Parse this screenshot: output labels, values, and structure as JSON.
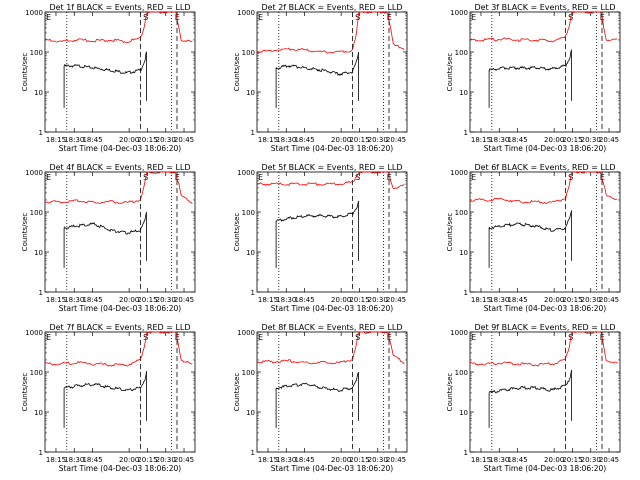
{
  "figure": {
    "colors": {
      "events": "#000000",
      "lld": "#ff0000",
      "axis": "#000000"
    },
    "xlabel": "Start Time (04-Dec-03 18:06:20)",
    "ylabel": "Counts/sec",
    "xticks": [
      "18:15",
      "18:30",
      "18:45",
      "20:00",
      "20:15",
      "20:30",
      "20:45"
    ],
    "yticks": [
      "1",
      "10",
      "100",
      "1000"
    ],
    "markers": [
      "E",
      "S",
      "E"
    ],
    "panels": [
      {
        "title": "Det 1f BLACK = Events, RED = LLD"
      },
      {
        "title": "Det 2f BLACK = Events, RED = LLD"
      },
      {
        "title": "Det 3f BLACK = Events, RED = LLD"
      },
      {
        "title": "Det 4f BLACK = Events, RED = LLD"
      },
      {
        "title": "Det 5f BLACK = Events, RED = LLD"
      },
      {
        "title": "Det 6f BLACK = Events, RED = LLD"
      },
      {
        "title": "Det 7f BLACK = Events, RED = LLD"
      },
      {
        "title": "Det 8f BLACK = Events, RED = LLD"
      },
      {
        "title": "Det 9f BLACK = Events, RED = LLD"
      }
    ]
  },
  "chart_data": [
    {
      "type": "line",
      "title": "Det 1f BLACK = Events, RED = LLD",
      "xlabel": "Start Time (04-Dec-03 18:06:20)",
      "ylabel": "Counts/sec",
      "x_ticks": [
        "18:15",
        "18:30",
        "18:45",
        "20:00",
        "20:15",
        "20:30",
        "20:45"
      ],
      "ylim": [
        1,
        1000
      ],
      "yscale": "log",
      "grid": false,
      "series": [
        {
          "name": "Events",
          "color": "#000000",
          "x": [
            0.35,
            0.6,
            0.9,
            1.2,
            1.5,
            1.75,
            1.83,
            1.86
          ],
          "values": [
            45,
            45,
            40,
            35,
            30,
            35,
            60,
            100
          ]
        },
        {
          "name": "LLD",
          "color": "#ff0000",
          "x": [
            0,
            0.3,
            0.6,
            0.9,
            1.2,
            1.5,
            1.75,
            1.83,
            1.86,
            2.4,
            2.5,
            2.7
          ],
          "values": [
            200,
            180,
            200,
            190,
            200,
            180,
            220,
            500,
            1000,
            1000,
            200,
            180
          ]
        }
      ]
    },
    {
      "type": "line",
      "title": "Det 2f BLACK = Events, RED = LLD",
      "xlabel": "Start Time (04-Dec-03 18:06:20)",
      "ylabel": "Counts/sec",
      "x_ticks": [
        "18:15",
        "18:30",
        "18:45",
        "20:00",
        "20:15",
        "20:30",
        "20:45"
      ],
      "ylim": [
        1,
        1000
      ],
      "yscale": "log",
      "grid": false,
      "series": [
        {
          "name": "Events",
          "color": "#000000",
          "x": [
            0.35,
            0.6,
            0.9,
            1.2,
            1.5,
            1.75,
            1.83,
            1.86
          ],
          "values": [
            40,
            45,
            40,
            35,
            28,
            32,
            60,
            100
          ]
        },
        {
          "name": "LLD",
          "color": "#ff0000",
          "x": [
            0,
            0.3,
            0.6,
            0.9,
            1.2,
            1.5,
            1.75,
            1.83,
            1.86,
            2.4,
            2.5,
            2.7
          ],
          "values": [
            100,
            110,
            120,
            110,
            100,
            100,
            110,
            300,
            1000,
            1000,
            150,
            120
          ]
        }
      ]
    },
    {
      "type": "line",
      "title": "Det 3f BLACK = Events, RED = LLD",
      "xlabel": "Start Time (04-Dec-03 18:06:20)",
      "ylabel": "Counts/sec",
      "x_ticks": [
        "18:15",
        "18:30",
        "18:45",
        "20:00",
        "20:15",
        "20:30",
        "20:45"
      ],
      "ylim": [
        1,
        1000
      ],
      "yscale": "log",
      "grid": false,
      "series": [
        {
          "name": "Events",
          "color": "#000000",
          "x": [
            0.35,
            0.6,
            0.9,
            1.2,
            1.5,
            1.75,
            1.83,
            1.86
          ],
          "values": [
            35,
            40,
            40,
            40,
            38,
            45,
            70,
            110
          ]
        },
        {
          "name": "LLD",
          "color": "#ff0000",
          "x": [
            0,
            0.3,
            0.6,
            0.9,
            1.2,
            1.5,
            1.75,
            1.83,
            1.86,
            2.4,
            2.5,
            2.7
          ],
          "values": [
            200,
            200,
            210,
            200,
            200,
            190,
            230,
            500,
            1000,
            1000,
            200,
            200
          ]
        }
      ]
    },
    {
      "type": "line",
      "title": "Det 4f BLACK = Events, RED = LLD",
      "xlabel": "Start Time (04-Dec-03 18:06:20)",
      "ylabel": "Counts/sec",
      "x_ticks": [
        "18:15",
        "18:30",
        "18:45",
        "20:00",
        "20:15",
        "20:30",
        "20:45"
      ],
      "ylim": [
        1,
        1000
      ],
      "yscale": "log",
      "grid": false,
      "series": [
        {
          "name": "Events",
          "color": "#000000",
          "x": [
            0.35,
            0.6,
            0.9,
            1.2,
            1.5,
            1.75,
            1.83,
            1.86
          ],
          "values": [
            40,
            45,
            50,
            35,
            30,
            35,
            60,
            100
          ]
        },
        {
          "name": "LLD",
          "color": "#ff0000",
          "x": [
            0,
            0.3,
            0.6,
            0.9,
            1.2,
            1.5,
            1.75,
            1.83,
            1.86,
            2.4,
            2.5,
            2.7
          ],
          "values": [
            180,
            180,
            190,
            170,
            180,
            170,
            200,
            500,
            1000,
            1000,
            250,
            170
          ]
        }
      ]
    },
    {
      "type": "line",
      "title": "Det 5f BLACK = Events, RED = LLD",
      "xlabel": "Start Time (04-Dec-03 18:06:20)",
      "ylabel": "Counts/sec",
      "x_ticks": [
        "18:15",
        "18:30",
        "18:45",
        "20:00",
        "20:15",
        "20:30",
        "20:45"
      ],
      "ylim": [
        1,
        1000
      ],
      "yscale": "log",
      "grid": false,
      "series": [
        {
          "name": "Events",
          "color": "#000000",
          "x": [
            0.35,
            0.6,
            0.9,
            1.2,
            1.5,
            1.75,
            1.83,
            1.86
          ],
          "values": [
            60,
            70,
            80,
            80,
            75,
            90,
            130,
            180
          ]
        },
        {
          "name": "LLD",
          "color": "#ff0000",
          "x": [
            0,
            0.3,
            0.6,
            0.9,
            1.2,
            1.5,
            1.75,
            1.83,
            1.86,
            2.4,
            2.5,
            2.7
          ],
          "values": [
            500,
            500,
            500,
            500,
            500,
            500,
            550,
            800,
            1000,
            1000,
            400,
            450
          ]
        }
      ]
    },
    {
      "type": "line",
      "title": "Det 6f BLACK = Events, RED = LLD",
      "xlabel": "Start Time (04-Dec-03 18:06:20)",
      "ylabel": "Counts/sec",
      "x_ticks": [
        "18:15",
        "18:30",
        "18:45",
        "20:00",
        "20:15",
        "20:30",
        "20:45"
      ],
      "ylim": [
        1,
        1000
      ],
      "yscale": "log",
      "grid": false,
      "series": [
        {
          "name": "Events",
          "color": "#000000",
          "x": [
            0.35,
            0.6,
            0.9,
            1.2,
            1.5,
            1.75,
            1.83,
            1.86
          ],
          "values": [
            40,
            45,
            50,
            45,
            35,
            40,
            70,
            110
          ]
        },
        {
          "name": "LLD",
          "color": "#ff0000",
          "x": [
            0,
            0.3,
            0.6,
            0.9,
            1.2,
            1.5,
            1.75,
            1.83,
            1.86,
            2.4,
            2.5,
            2.7
          ],
          "values": [
            200,
            200,
            210,
            180,
            180,
            170,
            220,
            500,
            1000,
            1000,
            250,
            210
          ]
        }
      ]
    },
    {
      "type": "line",
      "title": "Det 7f BLACK = Events, RED = LLD",
      "xlabel": "Start Time (04-Dec-03 18:06:20)",
      "ylabel": "Counts/sec",
      "x_ticks": [
        "18:15",
        "18:30",
        "18:45",
        "20:00",
        "20:15",
        "20:30",
        "20:45"
      ],
      "ylim": [
        1,
        1000
      ],
      "yscale": "log",
      "grid": false,
      "series": [
        {
          "name": "Events",
          "color": "#000000",
          "x": [
            0.35,
            0.6,
            0.9,
            1.2,
            1.5,
            1.75,
            1.83,
            1.86
          ],
          "values": [
            40,
            45,
            50,
            40,
            35,
            40,
            65,
            100
          ]
        },
        {
          "name": "LLD",
          "color": "#ff0000",
          "x": [
            0,
            0.3,
            0.6,
            0.9,
            1.2,
            1.5,
            1.75,
            1.83,
            1.86,
            2.4,
            2.5,
            2.7
          ],
          "values": [
            160,
            160,
            170,
            160,
            150,
            150,
            200,
            500,
            1000,
            1000,
            200,
            150
          ]
        }
      ]
    },
    {
      "type": "line",
      "title": "Det 8f BLACK = Events, RED = LLD",
      "xlabel": "Start Time (04-Dec-03 18:06:20)",
      "ylabel": "Counts/sec",
      "x_ticks": [
        "18:15",
        "18:30",
        "18:45",
        "20:00",
        "20:15",
        "20:30",
        "20:45"
      ],
      "ylim": [
        1,
        1000
      ],
      "yscale": "log",
      "grid": false,
      "series": [
        {
          "name": "Events",
          "color": "#000000",
          "x": [
            0.35,
            0.6,
            0.9,
            1.2,
            1.5,
            1.75,
            1.83,
            1.86
          ],
          "values": [
            40,
            45,
            50,
            40,
            35,
            40,
            65,
            100
          ]
        },
        {
          "name": "LLD",
          "color": "#ff0000",
          "x": [
            0,
            0.3,
            0.6,
            0.9,
            1.2,
            1.5,
            1.75,
            1.83,
            1.86,
            2.4,
            2.5,
            2.7
          ],
          "values": [
            180,
            180,
            190,
            170,
            170,
            170,
            210,
            500,
            1000,
            1000,
            250,
            170
          ]
        }
      ]
    },
    {
      "type": "line",
      "title": "Det 9f BLACK = Events, RED = LLD",
      "xlabel": "Start Time (04-Dec-03 18:06:20)",
      "ylabel": "Counts/sec",
      "x_ticks": [
        "18:15",
        "18:30",
        "18:45",
        "20:00",
        "20:15",
        "20:30",
        "20:45"
      ],
      "ylim": [
        1,
        1000
      ],
      "yscale": "log",
      "grid": false,
      "series": [
        {
          "name": "Events",
          "color": "#000000",
          "x": [
            0.35,
            0.6,
            0.9,
            1.2,
            1.5,
            1.75,
            1.83,
            1.86
          ],
          "values": [
            30,
            35,
            40,
            40,
            35,
            45,
            70,
            110
          ]
        },
        {
          "name": "LLD",
          "color": "#ff0000",
          "x": [
            0,
            0.3,
            0.6,
            0.9,
            1.2,
            1.5,
            1.75,
            1.83,
            1.86,
            2.4,
            2.5,
            2.7
          ],
          "values": [
            160,
            160,
            170,
            160,
            150,
            160,
            200,
            500,
            1000,
            1000,
            200,
            160
          ]
        }
      ]
    }
  ]
}
